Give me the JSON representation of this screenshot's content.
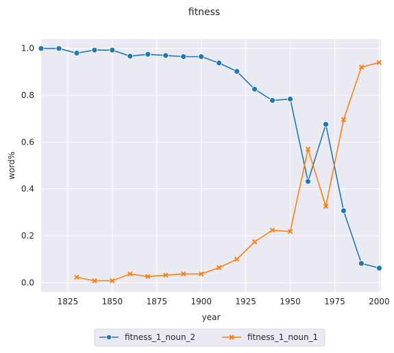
{
  "chart_data": {
    "type": "line",
    "title": "fitness",
    "xlabel": "year",
    "ylabel": "word%",
    "xlim": [
      1810,
      2001
    ],
    "ylim": [
      -0.04,
      1.04
    ],
    "xticks": [
      1825,
      1850,
      1875,
      1900,
      1925,
      1950,
      1975,
      2000
    ],
    "yticks": [
      0.0,
      0.2,
      0.4,
      0.6,
      0.8,
      1.0
    ],
    "grid": true,
    "legend_position": "bottom-center",
    "series": [
      {
        "name": "fitness_1_noun_2",
        "color": "#1f77b4",
        "marker": "circle",
        "points": [
          [
            1810,
            1.0
          ],
          [
            1820,
            1.0
          ],
          [
            1830,
            0.98
          ],
          [
            1840,
            0.993
          ],
          [
            1850,
            0.993
          ],
          [
            1860,
            0.967
          ],
          [
            1870,
            0.975
          ],
          [
            1880,
            0.97
          ],
          [
            1890,
            0.965
          ],
          [
            1900,
            0.965
          ],
          [
            1910,
            0.938
          ],
          [
            1920,
            0.902
          ],
          [
            1930,
            0.826
          ],
          [
            1940,
            0.778
          ],
          [
            1950,
            0.784
          ],
          [
            1960,
            0.432
          ],
          [
            1970,
            0.676
          ],
          [
            1980,
            0.307
          ],
          [
            1990,
            0.082
          ],
          [
            2000,
            0.062
          ]
        ]
      },
      {
        "name": "fitness_1_noun_1",
        "color": "#ff7f0e",
        "marker": "x",
        "points": [
          [
            1830,
            0.023
          ],
          [
            1840,
            0.008
          ],
          [
            1850,
            0.008
          ],
          [
            1860,
            0.037
          ],
          [
            1870,
            0.026
          ],
          [
            1880,
            0.032
          ],
          [
            1890,
            0.037
          ],
          [
            1900,
            0.037
          ],
          [
            1910,
            0.064
          ],
          [
            1920,
            0.1
          ],
          [
            1930,
            0.174
          ],
          [
            1940,
            0.224
          ],
          [
            1950,
            0.218
          ],
          [
            1960,
            0.57
          ],
          [
            1970,
            0.326
          ],
          [
            1980,
            0.696
          ],
          [
            1990,
            0.92
          ],
          [
            2000,
            0.94
          ]
        ]
      }
    ]
  }
}
